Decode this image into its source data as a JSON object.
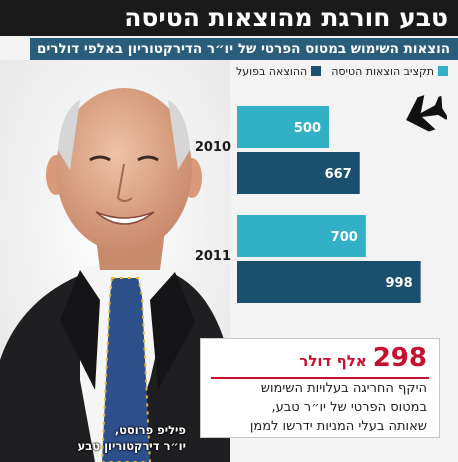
{
  "title": "טבע חורגת מהוצאות הטיסה",
  "subtitle": "הוצאות השימוש במטוס הפרטי של יו״ר הדירקטוריון באלפי דולרים",
  "colors": {
    "budget": "#31b0c6",
    "actual": "#1b4f6e",
    "accent": "#c8102e",
    "title_bg": "#1a1a1a",
    "subtitle_bg": "#2a5d7a"
  },
  "icons": {
    "plane": "airplane-icon"
  },
  "chart_data": {
    "type": "bar",
    "orientation": "horizontal",
    "categories": [
      "2010",
      "2011"
    ],
    "series": [
      {
        "name": "תקציב הוצאות הטיסה",
        "values": [
          500,
          700
        ]
      },
      {
        "name": "ההוצאה בפועל",
        "values": [
          667,
          998
        ]
      }
    ],
    "xlim": [
      0,
      1000
    ],
    "grid": false,
    "legend": "top-right"
  },
  "callout": {
    "number": "298",
    "unit": "אלף דולר",
    "lines": [
      "היקף החריגה בעלויות השימוש",
      "במטוס הפרטי של יו״ר טבע,",
      "שאותה בעלי המניות ידרשו לממן"
    ]
  },
  "caption": {
    "name": "פיליפ פרוסט,",
    "role": "יו״ר דירקטוריון טבע"
  }
}
